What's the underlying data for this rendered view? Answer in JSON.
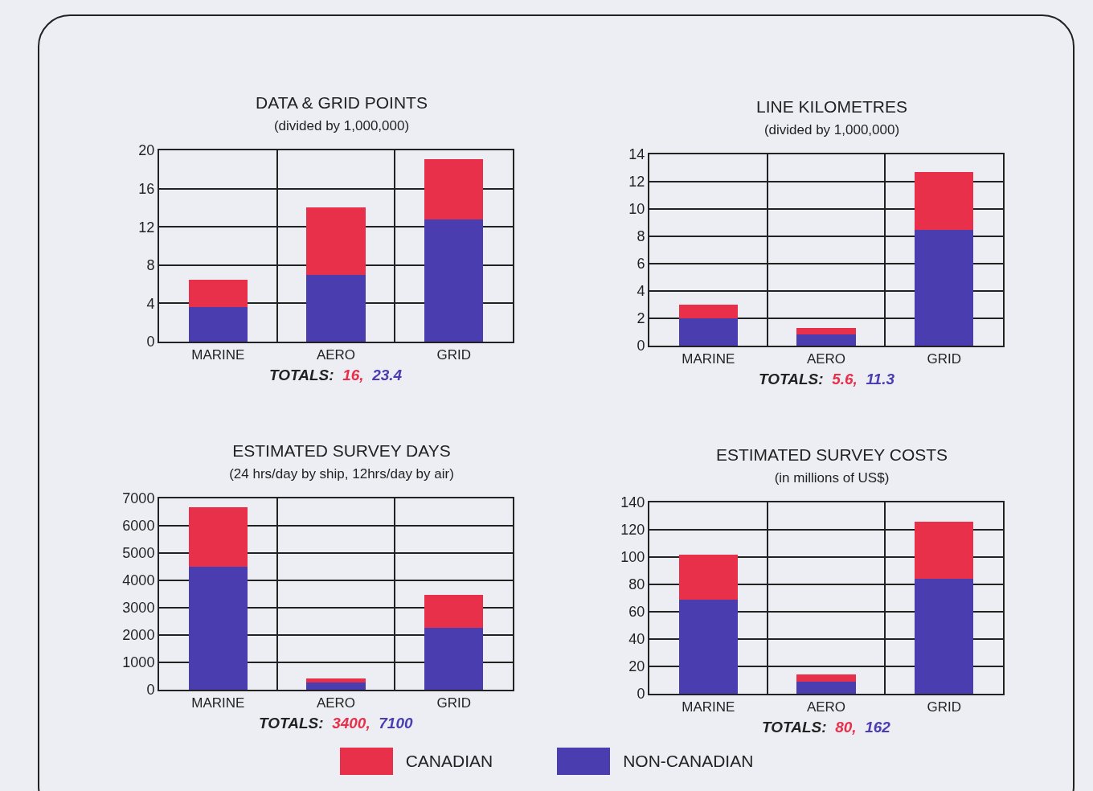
{
  "chart_data": [
    {
      "type": "bar",
      "title": "DATA & GRID POINTS",
      "subtitle": "(divided by 1,000,000)",
      "categories": [
        "MARINE",
        "AERO",
        "GRID"
      ],
      "stacked": true,
      "legend": "bottom",
      "grid": true,
      "series": [
        {
          "name": "NON-CANADIAN",
          "color": "#4a3db0",
          "values": [
            3.6,
            7.0,
            12.8
          ]
        },
        {
          "name": "CANADIAN",
          "color": "#e8304a",
          "values": [
            2.9,
            7.0,
            6.3
          ]
        }
      ],
      "ylim": [
        0,
        20
      ],
      "yticks": [
        0,
        4,
        8,
        12,
        16,
        20
      ],
      "annotations": [
        "TOTALS:",
        "16,",
        "23.4"
      ]
    },
    {
      "type": "bar",
      "title": "LINE KILOMETRES",
      "subtitle": "(divided by 1,000,000)",
      "categories": [
        "MARINE",
        "AERO",
        "GRID"
      ],
      "stacked": true,
      "grid": true,
      "series": [
        {
          "color": "#4a3db0",
          "values": [
            2.0,
            0.8,
            8.5
          ]
        },
        {
          "color": "#e8304a",
          "values": [
            1.0,
            0.5,
            4.2
          ]
        }
      ],
      "ylim": [
        0,
        14
      ],
      "yticks": [
        0,
        2,
        4,
        6,
        8,
        10,
        12,
        14
      ],
      "annotations": [
        "TOTALS:",
        "5.6,",
        "11.3"
      ]
    },
    {
      "type": "bar",
      "title": "ESTIMATED SURVEY DAYS",
      "subtitle": "(24 hrs/day by ship, 12hrs/day by air)",
      "categories": [
        "MARINE",
        "AERO",
        "GRID"
      ],
      "stacked": true,
      "grid": true,
      "series": [
        {
          "color": "#4a3db0",
          "values": [
            4500,
            260,
            2270
          ]
        },
        {
          "color": "#e8304a",
          "values": [
            2180,
            140,
            1190
          ]
        }
      ],
      "ylim": [
        0,
        7000
      ],
      "yticks": [
        0,
        1000,
        2000,
        3000,
        4000,
        5000,
        6000,
        7000
      ],
      "annotations": [
        "TOTALS:",
        "3400,",
        "7100"
      ]
    },
    {
      "type": "bar",
      "title": "ESTIMATED SURVEY COSTS",
      "subtitle": "(in millions of US$)",
      "categories": [
        "MARINE",
        "AERO",
        "GRID"
      ],
      "stacked": true,
      "grid": true,
      "series": [
        {
          "color": "#4a3db0",
          "values": [
            69,
            9,
            84
          ]
        },
        {
          "color": "#e8304a",
          "values": [
            33,
            5,
            42
          ]
        }
      ],
      "ylim": [
        0,
        140
      ],
      "yticks": [
        0,
        20,
        40,
        60,
        80,
        100,
        120,
        140
      ],
      "annotations": [
        "TOTALS:",
        "80,",
        "162"
      ]
    }
  ]
}
